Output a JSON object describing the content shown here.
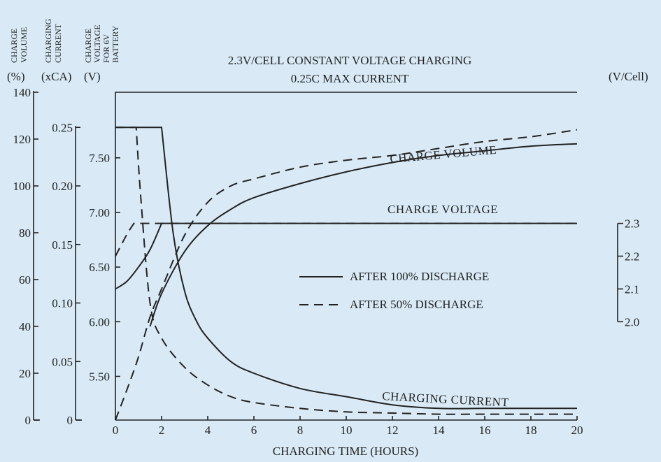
{
  "chart_data": {
    "type": "line",
    "title": [
      "2.3V/CELL CONSTANT VOLTAGE CHARGING",
      "0.25C MAX CURRENT"
    ],
    "xlabel": "CHARGING TIME (HOURS)",
    "xlim": [
      0,
      20
    ],
    "x_ticks": [
      0,
      2,
      4,
      6,
      8,
      10,
      12,
      14,
      16,
      18,
      20
    ],
    "axes": [
      {
        "id": "volume",
        "header": [
          "CHARGE",
          "VOLUME"
        ],
        "unit": "(%)",
        "lim": [
          0,
          140
        ],
        "ticks": [
          0,
          20,
          40,
          60,
          80,
          100,
          120,
          140
        ]
      },
      {
        "id": "current",
        "header": [
          "CHARGING",
          "CURRENT"
        ],
        "unit": "(xCA)",
        "lim": [
          0,
          0.28
        ],
        "ticks": [
          "0",
          "0.05",
          "0.10",
          "0.15",
          "0.20",
          "0.25"
        ]
      },
      {
        "id": "voltage",
        "header": [
          "CHARGE",
          "VOLTAGE",
          "FOR 6V",
          "BATTERY"
        ],
        "unit": "(V)",
        "lim": [
          5.1,
          8.1
        ],
        "ticks": [
          "5.50",
          "6.00",
          "6.50",
          "7.00",
          "7.50"
        ]
      },
      {
        "id": "vcell",
        "unit": "(V/Cell)",
        "lim": [
          1.7,
          2.7
        ],
        "ticks": [
          "2.0",
          "2.1",
          "2.2",
          "2.3"
        ]
      }
    ],
    "curve_labels": [
      "CHARGE VOLUME",
      "CHARGE VOLTAGE",
      "CHARGING CURRENT"
    ],
    "legend": [
      {
        "label": "AFTER 100% DISCHARGE",
        "style": "solid"
      },
      {
        "label": "AFTER 50% DISCHARGE",
        "style": "dashed"
      }
    ],
    "series": [
      {
        "legend": 0,
        "quantity": "volume",
        "axis": "volume",
        "x": [
          1.5,
          2,
          3,
          4,
          5,
          6,
          8,
          10,
          12,
          14,
          16,
          18,
          20
        ],
        "y": [
          40,
          54,
          72,
          83,
          90,
          95,
          101,
          106,
          110,
          113,
          115,
          117,
          118
        ]
      },
      {
        "legend": 1,
        "quantity": "volume",
        "axis": "volume",
        "x": [
          0,
          0.5,
          1,
          1.5,
          2,
          3,
          4,
          5,
          6,
          8,
          10,
          12,
          14,
          16,
          18,
          20
        ],
        "y": [
          0,
          13,
          27,
          44,
          56,
          79,
          93,
          100,
          103,
          108,
          111,
          113,
          116,
          119,
          121,
          124
        ]
      },
      {
        "legend": 0,
        "quantity": "current",
        "axis": "current",
        "x": [
          0,
          2,
          2.5,
          3,
          3.5,
          4,
          5,
          6,
          8,
          10,
          12,
          14,
          16,
          18,
          20
        ],
        "y": [
          0.25,
          0.25,
          0.16,
          0.11,
          0.085,
          0.07,
          0.05,
          0.04,
          0.027,
          0.02,
          0.013,
          0.01,
          0.01,
          0.01,
          0.01
        ]
      },
      {
        "legend": 1,
        "quantity": "current",
        "axis": "current",
        "x": [
          0,
          0.9,
          1.1,
          1.5,
          2,
          3,
          4,
          5,
          6,
          8,
          10,
          12,
          14,
          16,
          18,
          20
        ],
        "y": [
          0.25,
          0.25,
          0.19,
          0.1,
          0.07,
          0.045,
          0.03,
          0.02,
          0.015,
          0.01,
          0.007,
          0.006,
          0.005,
          0.005,
          0.005,
          0.005
        ]
      },
      {
        "legend": 0,
        "quantity": "voltage",
        "axis": "voltage",
        "x": [
          0,
          0.5,
          1,
          1.5,
          2,
          20
        ],
        "y": [
          6.3,
          6.37,
          6.5,
          6.66,
          6.9,
          6.9
        ]
      },
      {
        "legend": 1,
        "quantity": "voltage",
        "axis": "voltage",
        "x": [
          0,
          0.5,
          0.8,
          20
        ],
        "y": [
          6.6,
          6.8,
          6.9,
          6.9
        ]
      }
    ]
  }
}
